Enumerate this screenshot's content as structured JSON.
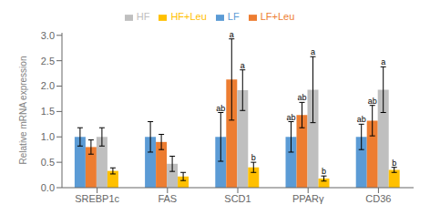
{
  "chart_data": {
    "type": "bar",
    "ylabel": "Relative mRNA expression",
    "categories": [
      "SREBP1c",
      "FAS",
      "SCD1",
      "PPARγ",
      "CD36"
    ],
    "series": [
      {
        "name": "LF",
        "color": "#5B9BD5",
        "values": [
          1.0,
          1.0,
          1.0,
          1.0,
          1.0
        ],
        "errors": [
          0.18,
          0.3,
          0.48,
          0.3,
          0.25
        ],
        "significance": [
          null,
          null,
          "ab",
          "ab",
          "ab"
        ]
      },
      {
        "name": "LF+Leu",
        "color": "#ED7D31",
        "values": [
          0.8,
          0.9,
          2.13,
          1.43,
          1.32
        ],
        "errors": [
          0.14,
          0.15,
          0.8,
          0.25,
          0.3
        ],
        "significance": [
          null,
          null,
          "a",
          "ab",
          "ab"
        ]
      },
      {
        "name": "HF",
        "color": "#BFBFBF",
        "values": [
          1.0,
          0.47,
          1.92,
          1.93,
          1.93
        ],
        "errors": [
          0.18,
          0.15,
          0.4,
          0.65,
          0.45
        ],
        "significance": [
          null,
          null,
          "a",
          "a",
          "a"
        ]
      },
      {
        "name": "HF+Leu",
        "color": "#FFC000",
        "values": [
          0.33,
          0.22,
          0.4,
          0.18,
          0.35
        ],
        "errors": [
          0.06,
          0.08,
          0.1,
          0.05,
          0.05
        ],
        "significance": [
          null,
          null,
          "b",
          "b",
          "b"
        ]
      }
    ],
    "ylim": [
      0.0,
      3.05
    ],
    "yticks": [
      {
        "value": 0.0,
        "label": "0.0"
      },
      0.5,
      {
        "value": 1.0,
        "label": "1.0"
      },
      1.5,
      {
        "value": 2.0,
        "label": "2.0"
      },
      2.5,
      {
        "value": 3.0,
        "label": "3.0"
      }
    ],
    "grid": false,
    "legend": "top"
  }
}
